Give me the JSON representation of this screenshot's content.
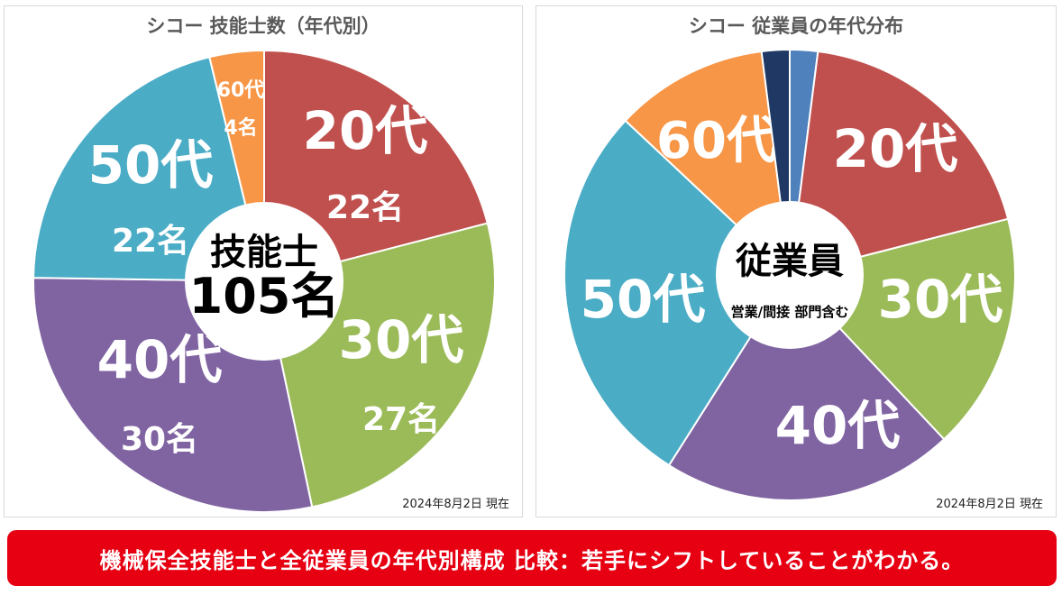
{
  "chart_data": [
    {
      "type": "pie",
      "title": "シコー 技能士数（年代別）",
      "center_label": [
        "技能士",
        "105名"
      ],
      "slices": [
        {
          "label": "20代",
          "count_label": "22名",
          "value": 22,
          "color": "#c0504d"
        },
        {
          "label": "30代",
          "count_label": "27名",
          "value": 27,
          "color": "#9bbb59"
        },
        {
          "label": "40代",
          "count_label": "30名",
          "value": 30,
          "color": "#8064a2"
        },
        {
          "label": "50代",
          "count_label": "22名",
          "value": 22,
          "color": "#4bacc6"
        },
        {
          "label": "60代",
          "count_label": "4名",
          "value": 4,
          "color": "#f79646"
        }
      ],
      "date_note": "2024年8月2日 現在"
    },
    {
      "type": "pie",
      "title": "シコー 従業員の年代分布",
      "center_label": [
        "従業員",
        "営業/間接 部門含む"
      ],
      "slices": [
        {
          "label": "",
          "value": 2,
          "color": "#4f81bd"
        },
        {
          "label": "20代",
          "value": 19,
          "color": "#c0504d"
        },
        {
          "label": "30代",
          "value": 17,
          "color": "#9bbb59"
        },
        {
          "label": "40代",
          "value": 21,
          "color": "#8064a2"
        },
        {
          "label": "50代",
          "value": 28,
          "color": "#4bacc6"
        },
        {
          "label": "60代",
          "value": 11,
          "color": "#f79646"
        },
        {
          "label": "",
          "value": 2,
          "color": "#1f3864"
        }
      ],
      "date_note": "2024年8月2日 現在"
    }
  ],
  "banner": {
    "text": "機械保全技能士と全従業員の年代別構成 比較：若手にシフトしていることがわかる。",
    "color": "#e60012"
  }
}
